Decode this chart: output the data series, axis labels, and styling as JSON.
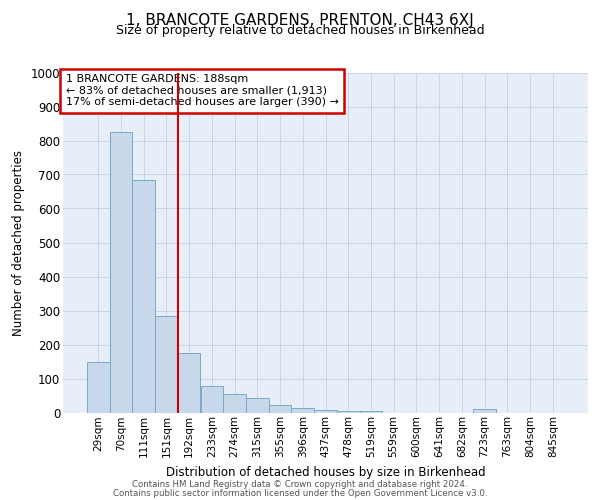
{
  "title": "1, BRANCOTE GARDENS, PRENTON, CH43 6XJ",
  "subtitle": "Size of property relative to detached houses in Birkenhead",
  "xlabel": "Distribution of detached houses by size in Birkenhead",
  "ylabel": "Number of detached properties",
  "categories": [
    "29sqm",
    "70sqm",
    "111sqm",
    "151sqm",
    "192sqm",
    "233sqm",
    "274sqm",
    "315sqm",
    "355sqm",
    "396sqm",
    "437sqm",
    "478sqm",
    "519sqm",
    "559sqm",
    "600sqm",
    "641sqm",
    "682sqm",
    "723sqm",
    "763sqm",
    "804sqm",
    "845sqm"
  ],
  "values": [
    148,
    824,
    684,
    284,
    174,
    78,
    53,
    42,
    21,
    13,
    8,
    5,
    5,
    0,
    0,
    0,
    0,
    10,
    0,
    0,
    0
  ],
  "bar_color": "#c8d8eb",
  "bar_edge_color": "#7aaac8",
  "vline_color": "#cc0000",
  "annotation_title": "1 BRANCOTE GARDENS: 188sqm",
  "annotation_line1": "← 83% of detached houses are smaller (1,913)",
  "annotation_line2": "17% of semi-detached houses are larger (390) →",
  "annotation_box_color": "#cc0000",
  "ylim": [
    0,
    1000
  ],
  "yticks": [
    0,
    100,
    200,
    300,
    400,
    500,
    600,
    700,
    800,
    900,
    1000
  ],
  "grid_color": "#c8d4e8",
  "bg_color": "#e8eef8",
  "footnote1": "Contains HM Land Registry data © Crown copyright and database right 2024.",
  "footnote2": "Contains public sector information licensed under the Open Government Licence v3.0."
}
